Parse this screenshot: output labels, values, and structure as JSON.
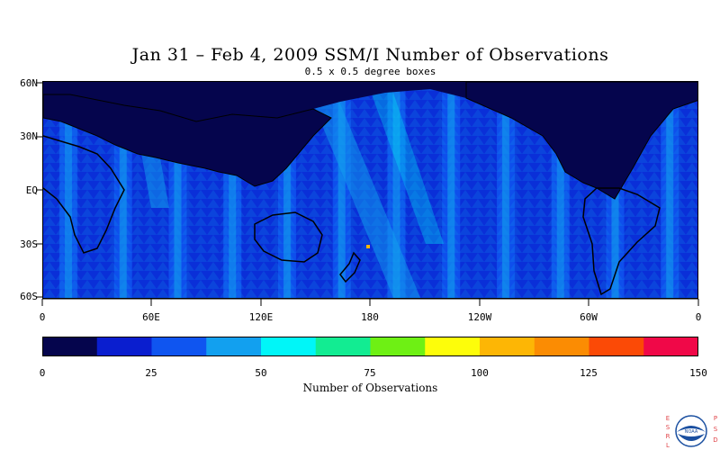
{
  "chart_data": {
    "type": "heatmap",
    "title": "Jan 31 – Feb 4, 2009 SSM/I Number of Observations",
    "subtitle": "0.5 x 0.5 degree boxes",
    "y_tick_labels": [
      "60N",
      "30N",
      "EQ",
      "30S",
      "60S"
    ],
    "x_tick_labels": [
      "0",
      "60E",
      "120E",
      "180",
      "120W",
      "60W",
      "0"
    ],
    "xlim": [
      0,
      360
    ],
    "ylim": [
      -60,
      60
    ],
    "colorbar": {
      "label": "Number of Observations",
      "range": [
        0,
        150
      ],
      "tick_labels": [
        "0",
        "25",
        "50",
        "75",
        "100",
        "125",
        "150"
      ],
      "bin_width": 12.5,
      "colors": [
        "#05054d",
        "#0a1ecf",
        "#0f55f0",
        "#12a0ef",
        "#00f6f8",
        "#12ec92",
        "#6ef014",
        "#fdfd0a",
        "#fdb605",
        "#fb8c03",
        "#fb4a06",
        "#f00848"
      ]
    }
  },
  "logo": {
    "left_letters": "ESRL",
    "right_letters": "PSD",
    "center": "NOAA"
  }
}
